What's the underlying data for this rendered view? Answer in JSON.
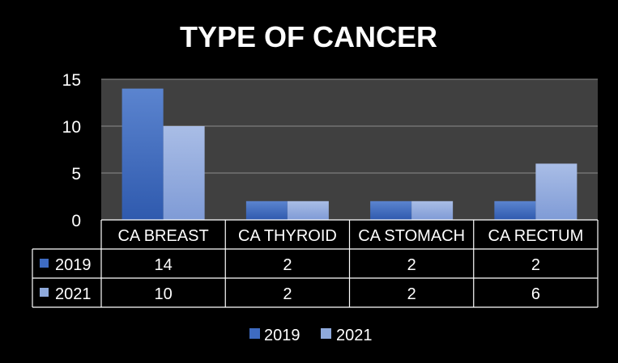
{
  "chart_data": {
    "type": "bar",
    "title": "TYPE OF CANCER",
    "categories": [
      "CA BREAST",
      "CA THYROID",
      "CA STOMACH",
      "CA RECTUM"
    ],
    "series": [
      {
        "name": "2019",
        "values": [
          14,
          2,
          2,
          2
        ],
        "color": "#4472C4"
      },
      {
        "name": "2021",
        "values": [
          10,
          2,
          2,
          6
        ],
        "color": "#8FAADC"
      }
    ],
    "yticks": [
      0,
      5,
      10,
      15
    ],
    "ylim": [
      0,
      15
    ],
    "grid": true,
    "legend": "bottom",
    "data_table": true,
    "plot_background": "#404040",
    "background": "#000000"
  }
}
